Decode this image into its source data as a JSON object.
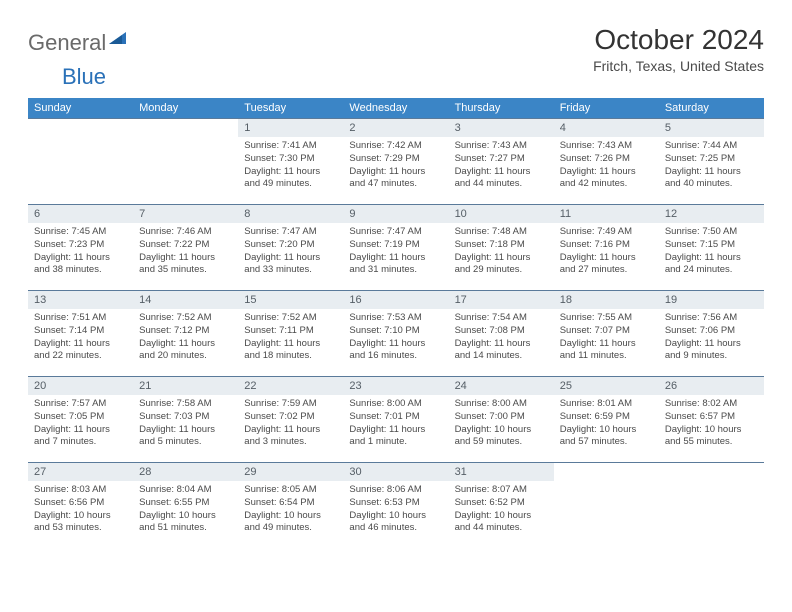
{
  "logo": {
    "general": "General",
    "blue": "Blue"
  },
  "title": "October 2024",
  "location": "Fritch, Texas, United States",
  "colors": {
    "header_bg": "#3b85c6",
    "header_text": "#ffffff",
    "daynum_bg": "#e8edf1",
    "border": "#5a7a9a",
    "logo_gray": "#6a6a6a",
    "logo_blue": "#2a71b8"
  },
  "weekdays": [
    "Sunday",
    "Monday",
    "Tuesday",
    "Wednesday",
    "Thursday",
    "Friday",
    "Saturday"
  ],
  "weeks": [
    [
      {
        "day": "",
        "sunrise": "",
        "sunset": "",
        "daylight": ""
      },
      {
        "day": "",
        "sunrise": "",
        "sunset": "",
        "daylight": ""
      },
      {
        "day": "1",
        "sunrise": "Sunrise: 7:41 AM",
        "sunset": "Sunset: 7:30 PM",
        "daylight": "Daylight: 11 hours and 49 minutes."
      },
      {
        "day": "2",
        "sunrise": "Sunrise: 7:42 AM",
        "sunset": "Sunset: 7:29 PM",
        "daylight": "Daylight: 11 hours and 47 minutes."
      },
      {
        "day": "3",
        "sunrise": "Sunrise: 7:43 AM",
        "sunset": "Sunset: 7:27 PM",
        "daylight": "Daylight: 11 hours and 44 minutes."
      },
      {
        "day": "4",
        "sunrise": "Sunrise: 7:43 AM",
        "sunset": "Sunset: 7:26 PM",
        "daylight": "Daylight: 11 hours and 42 minutes."
      },
      {
        "day": "5",
        "sunrise": "Sunrise: 7:44 AM",
        "sunset": "Sunset: 7:25 PM",
        "daylight": "Daylight: 11 hours and 40 minutes."
      }
    ],
    [
      {
        "day": "6",
        "sunrise": "Sunrise: 7:45 AM",
        "sunset": "Sunset: 7:23 PM",
        "daylight": "Daylight: 11 hours and 38 minutes."
      },
      {
        "day": "7",
        "sunrise": "Sunrise: 7:46 AM",
        "sunset": "Sunset: 7:22 PM",
        "daylight": "Daylight: 11 hours and 35 minutes."
      },
      {
        "day": "8",
        "sunrise": "Sunrise: 7:47 AM",
        "sunset": "Sunset: 7:20 PM",
        "daylight": "Daylight: 11 hours and 33 minutes."
      },
      {
        "day": "9",
        "sunrise": "Sunrise: 7:47 AM",
        "sunset": "Sunset: 7:19 PM",
        "daylight": "Daylight: 11 hours and 31 minutes."
      },
      {
        "day": "10",
        "sunrise": "Sunrise: 7:48 AM",
        "sunset": "Sunset: 7:18 PM",
        "daylight": "Daylight: 11 hours and 29 minutes."
      },
      {
        "day": "11",
        "sunrise": "Sunrise: 7:49 AM",
        "sunset": "Sunset: 7:16 PM",
        "daylight": "Daylight: 11 hours and 27 minutes."
      },
      {
        "day": "12",
        "sunrise": "Sunrise: 7:50 AM",
        "sunset": "Sunset: 7:15 PM",
        "daylight": "Daylight: 11 hours and 24 minutes."
      }
    ],
    [
      {
        "day": "13",
        "sunrise": "Sunrise: 7:51 AM",
        "sunset": "Sunset: 7:14 PM",
        "daylight": "Daylight: 11 hours and 22 minutes."
      },
      {
        "day": "14",
        "sunrise": "Sunrise: 7:52 AM",
        "sunset": "Sunset: 7:12 PM",
        "daylight": "Daylight: 11 hours and 20 minutes."
      },
      {
        "day": "15",
        "sunrise": "Sunrise: 7:52 AM",
        "sunset": "Sunset: 7:11 PM",
        "daylight": "Daylight: 11 hours and 18 minutes."
      },
      {
        "day": "16",
        "sunrise": "Sunrise: 7:53 AM",
        "sunset": "Sunset: 7:10 PM",
        "daylight": "Daylight: 11 hours and 16 minutes."
      },
      {
        "day": "17",
        "sunrise": "Sunrise: 7:54 AM",
        "sunset": "Sunset: 7:08 PM",
        "daylight": "Daylight: 11 hours and 14 minutes."
      },
      {
        "day": "18",
        "sunrise": "Sunrise: 7:55 AM",
        "sunset": "Sunset: 7:07 PM",
        "daylight": "Daylight: 11 hours and 11 minutes."
      },
      {
        "day": "19",
        "sunrise": "Sunrise: 7:56 AM",
        "sunset": "Sunset: 7:06 PM",
        "daylight": "Daylight: 11 hours and 9 minutes."
      }
    ],
    [
      {
        "day": "20",
        "sunrise": "Sunrise: 7:57 AM",
        "sunset": "Sunset: 7:05 PM",
        "daylight": "Daylight: 11 hours and 7 minutes."
      },
      {
        "day": "21",
        "sunrise": "Sunrise: 7:58 AM",
        "sunset": "Sunset: 7:03 PM",
        "daylight": "Daylight: 11 hours and 5 minutes."
      },
      {
        "day": "22",
        "sunrise": "Sunrise: 7:59 AM",
        "sunset": "Sunset: 7:02 PM",
        "daylight": "Daylight: 11 hours and 3 minutes."
      },
      {
        "day": "23",
        "sunrise": "Sunrise: 8:00 AM",
        "sunset": "Sunset: 7:01 PM",
        "daylight": "Daylight: 11 hours and 1 minute."
      },
      {
        "day": "24",
        "sunrise": "Sunrise: 8:00 AM",
        "sunset": "Sunset: 7:00 PM",
        "daylight": "Daylight: 10 hours and 59 minutes."
      },
      {
        "day": "25",
        "sunrise": "Sunrise: 8:01 AM",
        "sunset": "Sunset: 6:59 PM",
        "daylight": "Daylight: 10 hours and 57 minutes."
      },
      {
        "day": "26",
        "sunrise": "Sunrise: 8:02 AM",
        "sunset": "Sunset: 6:57 PM",
        "daylight": "Daylight: 10 hours and 55 minutes."
      }
    ],
    [
      {
        "day": "27",
        "sunrise": "Sunrise: 8:03 AM",
        "sunset": "Sunset: 6:56 PM",
        "daylight": "Daylight: 10 hours and 53 minutes."
      },
      {
        "day": "28",
        "sunrise": "Sunrise: 8:04 AM",
        "sunset": "Sunset: 6:55 PM",
        "daylight": "Daylight: 10 hours and 51 minutes."
      },
      {
        "day": "29",
        "sunrise": "Sunrise: 8:05 AM",
        "sunset": "Sunset: 6:54 PM",
        "daylight": "Daylight: 10 hours and 49 minutes."
      },
      {
        "day": "30",
        "sunrise": "Sunrise: 8:06 AM",
        "sunset": "Sunset: 6:53 PM",
        "daylight": "Daylight: 10 hours and 46 minutes."
      },
      {
        "day": "31",
        "sunrise": "Sunrise: 8:07 AM",
        "sunset": "Sunset: 6:52 PM",
        "daylight": "Daylight: 10 hours and 44 minutes."
      },
      {
        "day": "",
        "sunrise": "",
        "sunset": "",
        "daylight": ""
      },
      {
        "day": "",
        "sunrise": "",
        "sunset": "",
        "daylight": ""
      }
    ]
  ]
}
